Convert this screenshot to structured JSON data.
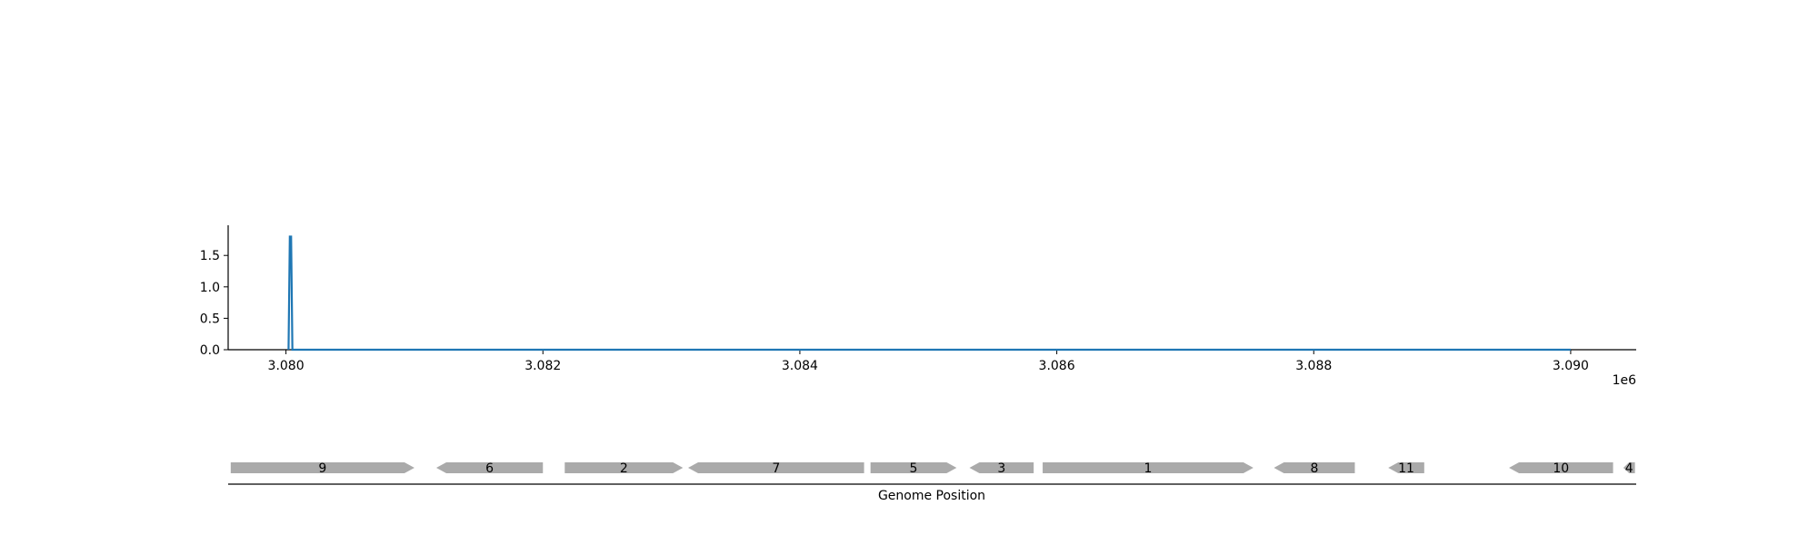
{
  "chart_data": [
    {
      "type": "line",
      "title": "",
      "xlabel": "",
      "ylabel": "",
      "x_offset_label": "1e6",
      "xlim": [
        3.07955,
        3.09051
      ],
      "ylim": [
        0.0,
        1.98
      ],
      "xticks": [
        3.08,
        3.082,
        3.084,
        3.086,
        3.088,
        3.09
      ],
      "xtick_labels": [
        "3.080",
        "3.082",
        "3.084",
        "3.086",
        "3.088",
        "3.090"
      ],
      "yticks": [
        0.0,
        0.5,
        1.0,
        1.5
      ],
      "ytick_labels": [
        "0.0",
        "0.5",
        "1.0",
        "1.5"
      ],
      "grid": false,
      "series": [
        {
          "color": "#1f77b4",
          "x": [
            3.08002,
            3.08003,
            3.08004,
            3.08005,
            3.09
          ],
          "y": [
            0.0,
            1.8,
            1.8,
            0.0,
            0.0
          ]
        }
      ]
    },
    {
      "type": "gene_track",
      "xlabel": "Genome Position",
      "color": "#aaaaaa",
      "genes": [
        {
          "label": "9",
          "start": 3.07957,
          "end": 3.081,
          "strand": "+"
        },
        {
          "label": "6",
          "start": 3.08117,
          "end": 3.082,
          "strand": "-"
        },
        {
          "label": "2",
          "start": 3.08217,
          "end": 3.08309,
          "strand": "+"
        },
        {
          "label": "7",
          "start": 3.08313,
          "end": 3.0845,
          "strand": "-"
        },
        {
          "label": "5",
          "start": 3.08455,
          "end": 3.08522,
          "strand": "+"
        },
        {
          "label": "3",
          "start": 3.08532,
          "end": 3.08582,
          "strand": "-"
        },
        {
          "label": "1",
          "start": 3.08589,
          "end": 3.08753,
          "strand": "+"
        },
        {
          "label": "8",
          "start": 3.08769,
          "end": 3.08832,
          "strand": "-"
        },
        {
          "label": "11",
          "start": 3.08858,
          "end": 3.08886,
          "strand": "-"
        },
        {
          "label": "10",
          "start": 3.08952,
          "end": 3.09033,
          "strand": "-"
        },
        {
          "label": "4",
          "start": 3.09041,
          "end": 3.0905,
          "strand": "-"
        }
      ]
    }
  ]
}
